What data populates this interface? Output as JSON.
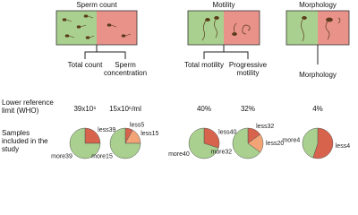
{
  "groups": [
    "Sperm count",
    "Motility",
    "Morphology"
  ],
  "row_labels": {
    "limit": "Lower reference limit (WHO)",
    "samples": "Samples included in the study"
  },
  "columns": [
    {
      "label": "Total count",
      "limit": "39x10⁶",
      "pie": [
        {
          "name": "less39",
          "value": 25,
          "color": "#d8634c"
        },
        {
          "name": "more39",
          "value": 75,
          "color": "#a9d08e"
        }
      ]
    },
    {
      "label": "Sperm concentration",
      "limit": "15x10⁶/ml",
      "pie": [
        {
          "name": "less5",
          "value": 8,
          "color": "#d8634c"
        },
        {
          "name": "less15",
          "value": 17,
          "color": "#f2a477"
        },
        {
          "name": "more15",
          "value": 75,
          "color": "#a9d08e"
        }
      ]
    },
    {
      "label": "Total motility",
      "limit": "40%",
      "pie": [
        {
          "name": "less40",
          "value": 30,
          "color": "#d8634c"
        },
        {
          "name": "more40",
          "value": 70,
          "color": "#a9d08e"
        }
      ]
    },
    {
      "label": "Progressive motility",
      "limit": "32%",
      "pie": [
        {
          "name": "less32",
          "value": 15,
          "color": "#d8634c"
        },
        {
          "name": "less20",
          "value": 20,
          "color": "#f2a477"
        },
        {
          "name": "more32",
          "value": 65,
          "color": "#a9d08e"
        }
      ]
    },
    {
      "label": "Morphology",
      "limit": "4%",
      "pie": [
        {
          "name": "less4",
          "value": 55,
          "color": "#d8634c"
        },
        {
          "name": "more4",
          "value": 45,
          "color": "#a9d08e"
        }
      ]
    }
  ]
}
